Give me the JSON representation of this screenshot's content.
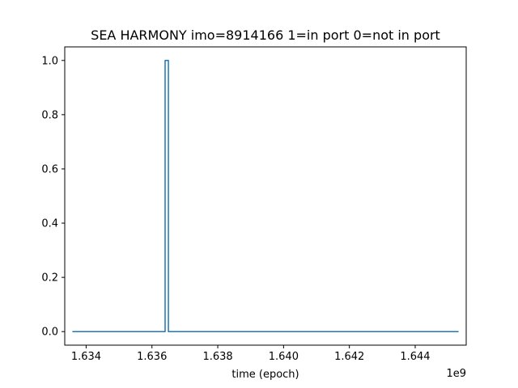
{
  "chart_data": {
    "type": "line",
    "title": "SEA HARMONY imo=8914166 1=in port 0=not in port",
    "xlabel": "time (epoch)",
    "ylabel": "",
    "x_offset_label": "1e9",
    "xlim": [
      1.63335,
      1.64555
    ],
    "ylim": [
      -0.05,
      1.05
    ],
    "x_ticks": [
      1.634,
      1.636,
      1.638,
      1.64,
      1.642,
      1.644
    ],
    "x_tick_labels": [
      "1.634",
      "1.636",
      "1.638",
      "1.640",
      "1.642",
      "1.644"
    ],
    "y_ticks": [
      0.0,
      0.2,
      0.4,
      0.6,
      0.8,
      1.0
    ],
    "y_tick_labels": [
      "0.0",
      "0.2",
      "0.4",
      "0.6",
      "0.8",
      "1.0"
    ],
    "grid": false,
    "series": [
      {
        "color": "#1f77b4",
        "step": "post",
        "points": [
          [
            1.6336,
            0
          ],
          [
            1.6364,
            0
          ],
          [
            1.6364,
            1
          ],
          [
            1.6365,
            1
          ],
          [
            1.6365,
            0
          ],
          [
            1.6453,
            0
          ]
        ]
      }
    ]
  }
}
